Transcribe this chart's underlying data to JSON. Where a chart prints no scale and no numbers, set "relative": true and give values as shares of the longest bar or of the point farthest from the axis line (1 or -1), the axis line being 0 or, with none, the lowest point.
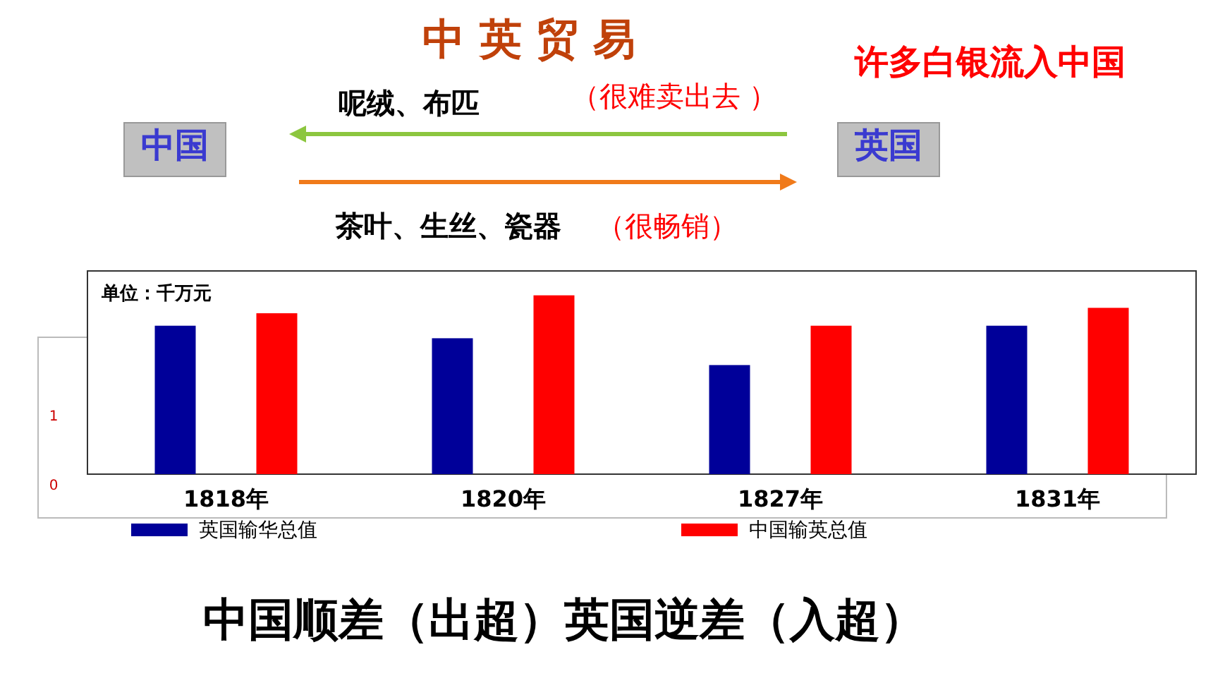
{
  "chart_data": {
    "type": "bar",
    "title": "中 英 贸 易",
    "ylabel": "单位：千万元",
    "categories": [
      "1818年",
      "1820年",
      "1827年",
      "1831年"
    ],
    "relative": true,
    "series": [
      {
        "name": "英国输华总值",
        "color": "#000099",
        "values": [
          0.83,
          0.76,
          0.61,
          0.83
        ]
      },
      {
        "name": "中国输英总值",
        "color": "#ff0000",
        "values": [
          0.9,
          1,
          0.83,
          0.93
        ]
      }
    ],
    "legend": "bottom",
    "annotations": [
      "呢绒、布匹",
      "（很难卖出去 ）",
      "中国",
      "英国",
      "茶叶、生丝、瓷器",
      "（很畅销）",
      "许多白银流入中国",
      "1",
      "0",
      "中国顺差（出超）英国逆差（入超）"
    ]
  }
}
